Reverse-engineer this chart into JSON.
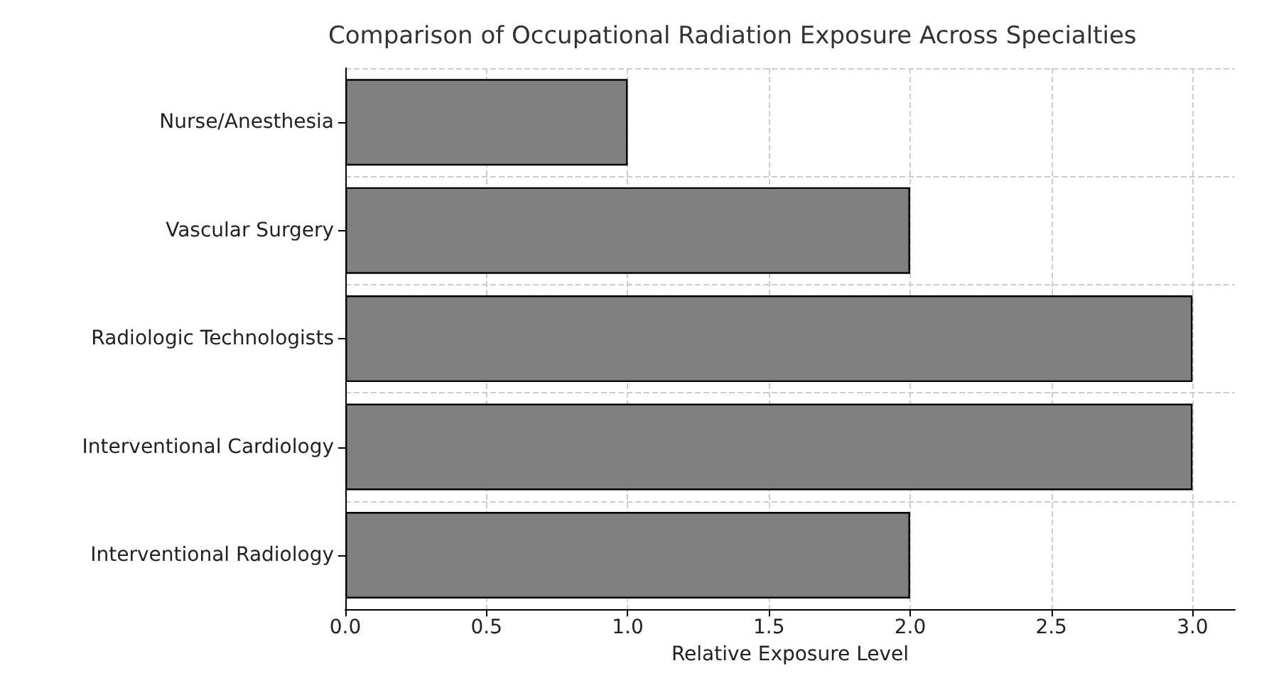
{
  "chart_data": {
    "type": "bar",
    "orientation": "horizontal",
    "title": "Comparison of Occupational Radiation Exposure Across Specialties",
    "xlabel": "Relative Exposure Level",
    "categories": [
      "Nurse/Anesthesia",
      "Vascular Surgery",
      "Radiologic Technologists",
      "Interventional Cardiology",
      "Interventional Radiology"
    ],
    "values": [
      1,
      2,
      3,
      3,
      2
    ],
    "color": "#808080",
    "xlim": [
      0,
      3.15
    ],
    "xticks": [
      {
        "value": 0,
        "label": "0.0"
      },
      {
        "value": 0.5,
        "label": "0.5"
      },
      {
        "value": 1,
        "label": "1.0"
      },
      {
        "value": 1.5,
        "label": "1.5"
      },
      {
        "value": 2,
        "label": "2.0"
      },
      {
        "value": 2.5,
        "label": "2.5"
      },
      {
        "value": 3,
        "label": "3.0"
      }
    ],
    "grid": true
  }
}
